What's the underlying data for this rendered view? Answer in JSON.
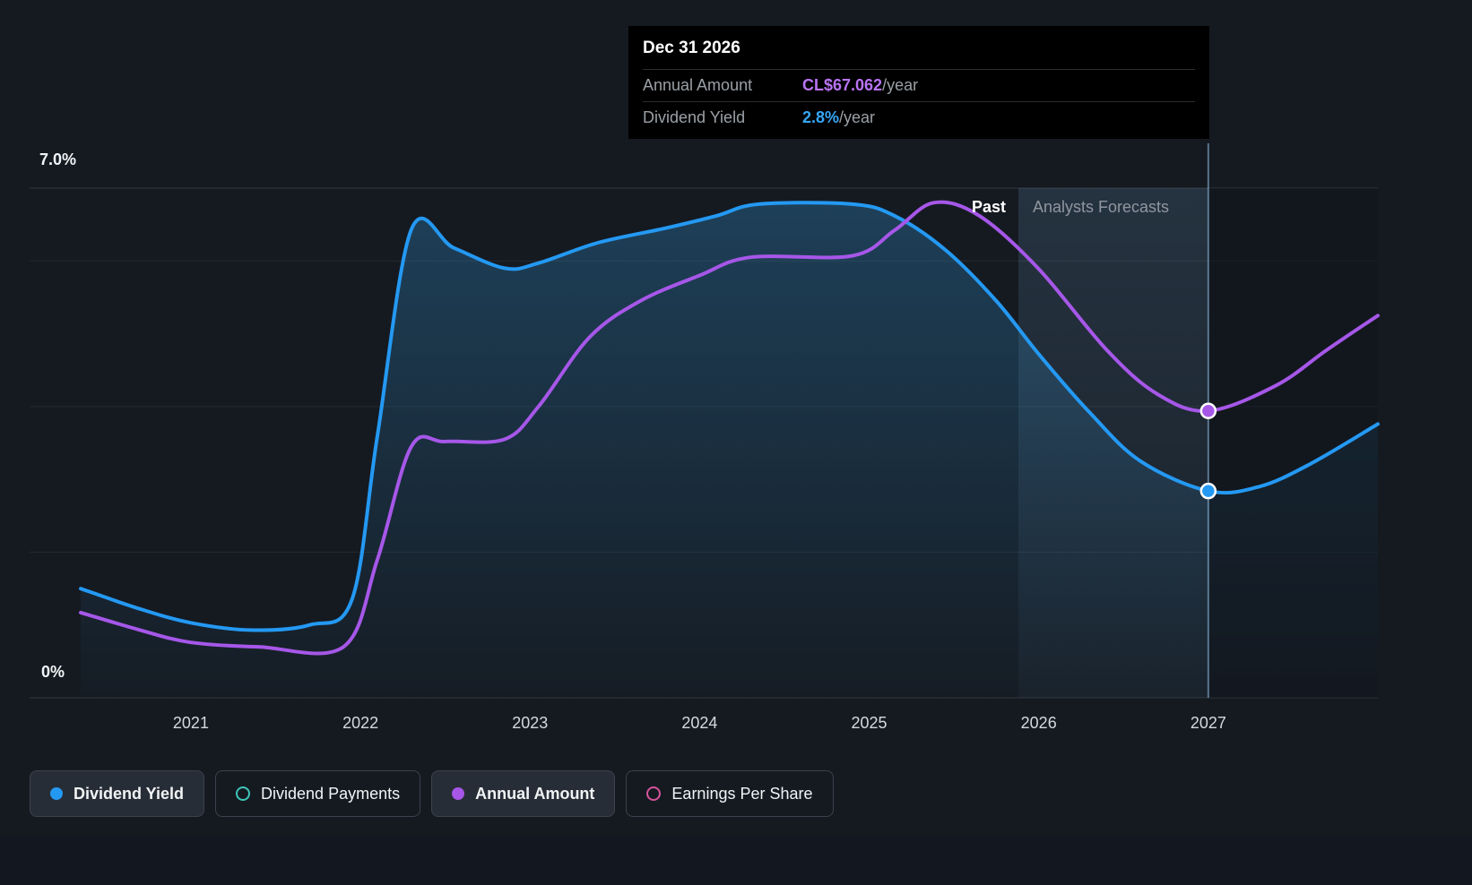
{
  "tooltip": {
    "date": "Dec 31 2026",
    "rows": [
      {
        "label": "Annual Amount",
        "value": "CL$67.062",
        "suffix": "/year",
        "color": "#b974f5"
      },
      {
        "label": "Dividend Yield",
        "value": "2.8%",
        "suffix": "/year",
        "color": "#36a7f7"
      }
    ]
  },
  "labels": {
    "past": "Past",
    "forecast": "Analysts Forecasts"
  },
  "axes": {
    "y_top": "7.0%",
    "y_bottom": "0%"
  },
  "legend": [
    {
      "label": "Dividend Yield",
      "marker": "filled",
      "color": "#2499f3",
      "selected": true
    },
    {
      "label": "Dividend Payments",
      "marker": "outline",
      "color": "#3ec6b8",
      "selected": false
    },
    {
      "label": "Annual Amount",
      "marker": "filled",
      "color": "#a657e8",
      "selected": true
    },
    {
      "label": "Earnings Per Share",
      "marker": "outline",
      "color": "#d4549b",
      "selected": false
    }
  ],
  "chart_data": {
    "type": "area",
    "x_ticks": [
      2021,
      2022,
      2023,
      2024,
      2025,
      2026,
      2027
    ],
    "x_range": [
      2020.35,
      2028.0
    ],
    "y_axis": {
      "min": 0,
      "max": 7,
      "unit": "%",
      "gridlines": [
        0,
        2,
        4,
        6,
        7
      ],
      "top_label": "7.0%",
      "bottom_label": "0%"
    },
    "past_until": 2025.88,
    "selected_x": 2027.0,
    "selected_date": "Dec 31 2026",
    "legend_position": "bottom",
    "series": [
      {
        "name": "Dividend Yield",
        "color": "#2499f3",
        "unit": "%",
        "selected_value": "2.8%/year",
        "fill_under": true,
        "points": [
          [
            2020.35,
            1.5
          ],
          [
            2020.7,
            1.22
          ],
          [
            2021,
            1.03
          ],
          [
            2021.35,
            0.93
          ],
          [
            2021.7,
            1.0
          ],
          [
            2021.95,
            1.35
          ],
          [
            2022.1,
            3.6
          ],
          [
            2022.3,
            6.43
          ],
          [
            2022.55,
            6.18
          ],
          [
            2022.85,
            5.9
          ],
          [
            2023.05,
            5.97
          ],
          [
            2023.4,
            6.25
          ],
          [
            2023.8,
            6.45
          ],
          [
            2024.1,
            6.62
          ],
          [
            2024.35,
            6.78
          ],
          [
            2024.9,
            6.78
          ],
          [
            2025.15,
            6.62
          ],
          [
            2025.45,
            6.15
          ],
          [
            2025.75,
            5.45
          ],
          [
            2026,
            4.72
          ],
          [
            2026.3,
            3.92
          ],
          [
            2026.6,
            3.25
          ],
          [
            2027,
            2.84
          ],
          [
            2027.3,
            2.9
          ],
          [
            2027.6,
            3.21
          ],
          [
            2028,
            3.76
          ]
        ]
      },
      {
        "name": "Annual Amount",
        "color": "#a657e8",
        "unit": "CL$ (hidden scale, plotted against yield axis)",
        "selected_value": "CL$67.062/year",
        "fill_under": false,
        "points": [
          [
            2020.35,
            1.17
          ],
          [
            2020.7,
            0.93
          ],
          [
            2021,
            0.76
          ],
          [
            2021.4,
            0.7
          ],
          [
            2021.9,
            0.7
          ],
          [
            2022.1,
            1.9
          ],
          [
            2022.3,
            3.45
          ],
          [
            2022.5,
            3.52
          ],
          [
            2022.85,
            3.55
          ],
          [
            2023.05,
            4.0
          ],
          [
            2023.35,
            4.95
          ],
          [
            2023.65,
            5.45
          ],
          [
            2024,
            5.8
          ],
          [
            2024.3,
            6.05
          ],
          [
            2024.9,
            6.07
          ],
          [
            2025.15,
            6.42
          ],
          [
            2025.38,
            6.8
          ],
          [
            2025.65,
            6.62
          ],
          [
            2026,
            5.89
          ],
          [
            2026.4,
            4.78
          ],
          [
            2026.7,
            4.17
          ],
          [
            2027,
            3.94
          ],
          [
            2027.4,
            4.29
          ],
          [
            2027.7,
            4.78
          ],
          [
            2028,
            5.25
          ]
        ]
      }
    ]
  }
}
